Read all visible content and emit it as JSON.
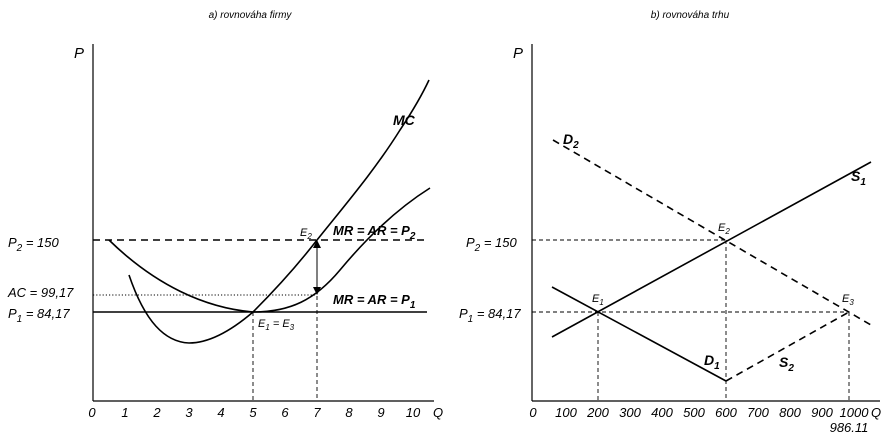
{
  "figure": {
    "panel_a": {
      "title": "a) rovnováha firmy",
      "y_axis": "P",
      "x_axis": "Q",
      "x_ticks": [
        "0",
        "1",
        "2",
        "3",
        "4",
        "5",
        "6",
        "7",
        "8",
        "9",
        "10"
      ],
      "labels": {
        "mc": "MC",
        "mr2_main": "MR = AR = P",
        "mr2_sub": "2",
        "mr1_main": "MR = AR = P",
        "mr1_sub": "1",
        "e2_main": "E",
        "e2_sub": "2",
        "e1_main": "E",
        "e1_sub": "1",
        "e1_eq": " = E",
        "e3_sub": "3",
        "p2_main": "P",
        "p2_sub": "2",
        "p2_val": " = 150",
        "ac": "AC = 99,17",
        "p1_main": "P",
        "p1_sub": "1",
        "p1_val": " = 84,17"
      }
    },
    "panel_b": {
      "title": "b) rovnováha trhu",
      "y_axis": "P",
      "x_axis": "Q",
      "x_ticks": [
        "0",
        "100",
        "200",
        "300",
        "400",
        "500",
        "600",
        "700",
        "800",
        "900",
        "1000"
      ],
      "extra_tick": "986.11",
      "labels": {
        "d2_main": "D",
        "d2_sub": "2",
        "s1_main": "S",
        "s1_sub": "1",
        "d1_main": "D",
        "d1_sub": "1",
        "s2_main": "S",
        "s2_sub": "2",
        "e1_main": "E",
        "e1_sub": "1",
        "e2_main": "E",
        "e2_sub": "2",
        "e3_main": "E",
        "e3_sub": "3",
        "p2_main": "P",
        "p2_sub": "2",
        "p2_val": " = 150",
        "p1_main": "P",
        "p1_sub": "1",
        "p1_val": " = 84,17"
      }
    }
  }
}
